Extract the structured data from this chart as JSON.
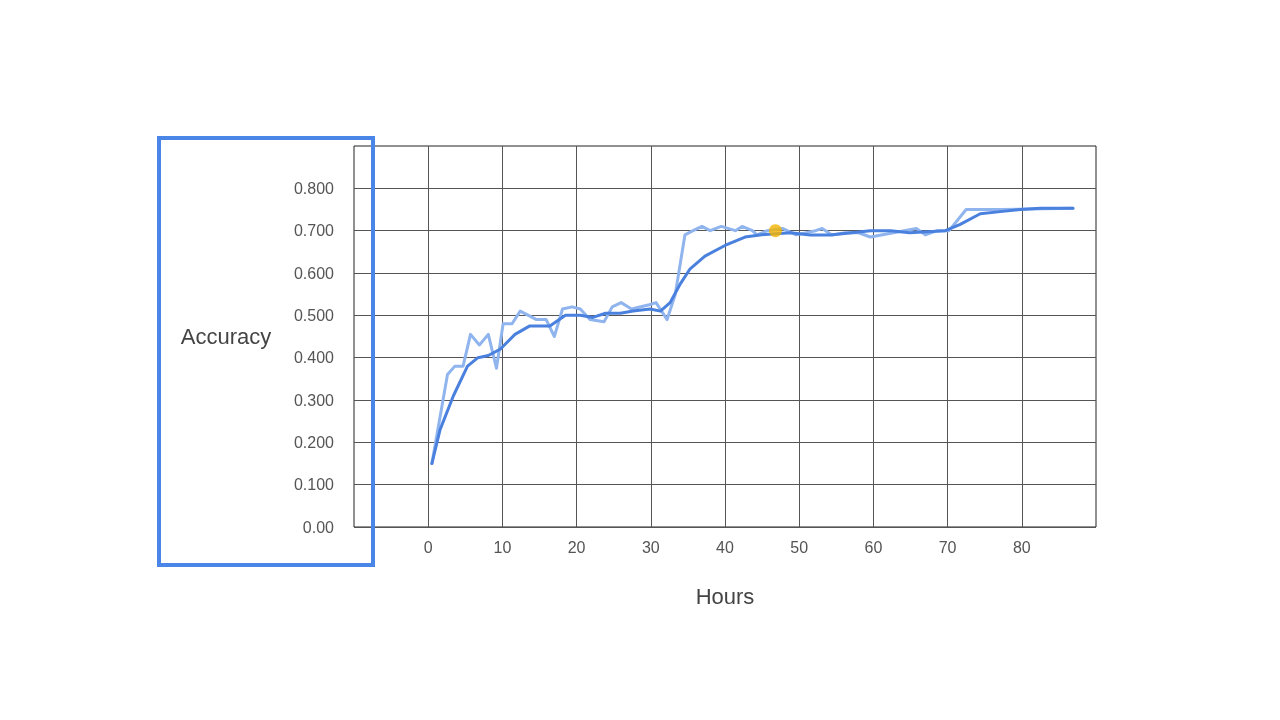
{
  "chart_data": {
    "type": "line",
    "xlabel": "Hours",
    "ylabel": "Accuracy",
    "xlim": [
      -10,
      90
    ],
    "xticks": [
      0,
      10,
      20,
      30,
      40,
      50,
      60,
      70,
      80
    ],
    "ylim": [
      0,
      0.9
    ],
    "yticks": [
      {
        "value": 0,
        "label": "0.00"
      },
      {
        "value": 0.1,
        "label": "0.100"
      },
      {
        "value": 0.2,
        "label": "0.200"
      },
      {
        "value": 0.3,
        "label": "0.300"
      },
      {
        "value": 0.4,
        "label": "0.400"
      },
      {
        "value": 0.5,
        "label": "0.500"
      },
      {
        "value": 0.6,
        "label": "0.600"
      },
      {
        "value": 0.7,
        "label": "0.700"
      },
      {
        "value": 0.8,
        "label": "0.800"
      }
    ],
    "grid": true,
    "marker": "none",
    "line_style": "solid",
    "series": [
      {
        "color": "#8fb4ee",
        "x": [
          0.5,
          2.6,
          3.6,
          4.7,
          5.7,
          6.9,
          8.1,
          9.2,
          10.1,
          11.3,
          12.4,
          14.6,
          15.9,
          17.0,
          18.1,
          19.4,
          20.5,
          21.8,
          23.7,
          24.8,
          26.0,
          27.4,
          29.8,
          30.7,
          32.2,
          33.3,
          34.6,
          35.7,
          36.9,
          38.0,
          39.5,
          41.4,
          42.3,
          43.7,
          44.3,
          45.7,
          47.8,
          49.6,
          52.2,
          53.1,
          54.4,
          56.2,
          58.0,
          59.6,
          62.7,
          65.8,
          67.0,
          68.6,
          70.2,
          72.5,
          77.1,
          86.9
        ],
        "values": [
          0.15,
          0.36,
          0.38,
          0.38,
          0.455,
          0.43,
          0.455,
          0.375,
          0.48,
          0.48,
          0.51,
          0.49,
          0.49,
          0.45,
          0.515,
          0.52,
          0.515,
          0.49,
          0.485,
          0.52,
          0.53,
          0.515,
          0.525,
          0.53,
          0.49,
          0.55,
          0.69,
          0.7,
          0.71,
          0.7,
          0.71,
          0.7,
          0.71,
          0.7,
          0.69,
          0.7,
          0.705,
          0.69,
          0.7,
          0.705,
          0.69,
          0.695,
          0.695,
          0.685,
          0.695,
          0.705,
          0.69,
          0.7,
          0.7,
          0.75,
          0.75,
          0.753
        ]
      },
      {
        "color": "#4a80de",
        "x": [
          0.5,
          1.6,
          3.4,
          5.3,
          6.7,
          8.1,
          9.7,
          11.7,
          13.7,
          16.4,
          18.5,
          20.5,
          22.2,
          23.9,
          25.9,
          27.6,
          29.9,
          31.3,
          32.6,
          34.0,
          35.3,
          37.3,
          40.0,
          42.7,
          44.7,
          48.8,
          51.5,
          54.2,
          59.6,
          62.3,
          64.9,
          69.7,
          71.7,
          74.4,
          77.1,
          79.8,
          82.5,
          86.9
        ],
        "values": [
          0.15,
          0.23,
          0.31,
          0.38,
          0.4,
          0.405,
          0.42,
          0.455,
          0.475,
          0.475,
          0.5,
          0.5,
          0.495,
          0.505,
          0.505,
          0.51,
          0.515,
          0.51,
          0.53,
          0.575,
          0.61,
          0.64,
          0.665,
          0.685,
          0.69,
          0.695,
          0.69,
          0.69,
          0.7,
          0.7,
          0.695,
          0.7,
          0.715,
          0.74,
          0.745,
          0.75,
          0.753,
          0.753
        ]
      },
      {
        "type": "scatter",
        "color": "#f4b400",
        "marker": "circle",
        "x": [
          46.8
        ],
        "values": [
          0.7
        ]
      }
    ]
  }
}
